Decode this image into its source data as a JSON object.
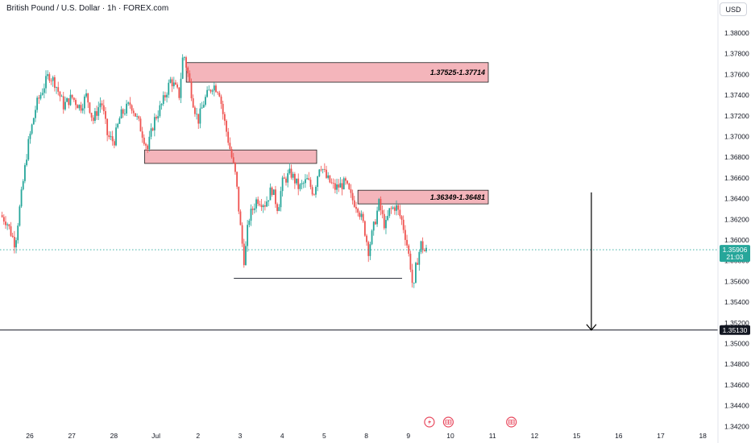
{
  "header": {
    "title": "British Pound / U.S. Dollar · 1h · FOREX.com",
    "currency_button": "USD"
  },
  "colors": {
    "up": "#26a69a",
    "down": "#ef5350",
    "zone_fill": "#f4b5bb",
    "zone_stroke": "#1e1e1e",
    "price_line": "#26a69a",
    "target_line": "#131722",
    "event_icon": "#e84a5f"
  },
  "chart_data": {
    "type": "candlestick",
    "symbol": "GBPUSD",
    "interval": "1h",
    "ylim": [
      1.341,
      1.3815
    ],
    "y_ticks": [
      "1.38000",
      "1.37800",
      "1.37600",
      "1.37400",
      "1.37200",
      "1.37000",
      "1.36800",
      "1.36600",
      "1.36400",
      "1.36200",
      "1.36000",
      "1.35800",
      "1.35600",
      "1.35400",
      "1.35200",
      "1.35000",
      "1.34800",
      "1.34600",
      "1.34400",
      "1.34200"
    ],
    "x_ticks": [
      "26",
      "27",
      "28",
      "Jul",
      "2",
      "3",
      "4",
      "5",
      "8",
      "9",
      "10",
      "11",
      "12",
      "15",
      "16",
      "17",
      "18"
    ],
    "x_tick_positions_days": [
      0,
      1,
      2,
      3,
      4,
      5,
      6,
      7,
      8,
      9,
      10,
      11,
      12,
      13,
      14,
      15,
      16
    ],
    "data_end_day": 9.45,
    "price_series": [
      [
        -0.7,
        1.3624
      ],
      [
        -0.55,
        1.3618
      ],
      [
        -0.35,
        1.3596
      ],
      [
        -0.25,
        1.3628
      ],
      [
        -0.05,
        1.369
      ],
      [
        0.15,
        1.373
      ],
      [
        0.25,
        1.374
      ],
      [
        0.45,
        1.376
      ],
      [
        0.6,
        1.3752
      ],
      [
        0.8,
        1.373
      ],
      [
        1.0,
        1.3738
      ],
      [
        1.2,
        1.3728
      ],
      [
        1.35,
        1.374
      ],
      [
        1.5,
        1.3715
      ],
      [
        1.7,
        1.3735
      ],
      [
        1.85,
        1.37
      ],
      [
        2.0,
        1.3695
      ],
      [
        2.15,
        1.372
      ],
      [
        2.4,
        1.3732
      ],
      [
        2.6,
        1.3712
      ],
      [
        2.8,
        1.3688
      ],
      [
        2.95,
        1.3715
      ],
      [
        3.15,
        1.3732
      ],
      [
        3.35,
        1.3755
      ],
      [
        3.55,
        1.374
      ],
      [
        3.65,
        1.3782
      ],
      [
        3.75,
        1.3762
      ],
      [
        3.9,
        1.373
      ],
      [
        4.0,
        1.3715
      ],
      [
        4.15,
        1.3735
      ],
      [
        4.35,
        1.375
      ],
      [
        4.5,
        1.3745
      ],
      [
        4.6,
        1.372
      ],
      [
        4.75,
        1.369
      ],
      [
        4.9,
        1.366
      ],
      [
        5.0,
        1.3615
      ],
      [
        5.1,
        1.3578
      ],
      [
        5.2,
        1.362
      ],
      [
        5.4,
        1.364
      ],
      [
        5.6,
        1.3635
      ],
      [
        5.75,
        1.365
      ],
      [
        5.9,
        1.363
      ],
      [
        6.0,
        1.3655
      ],
      [
        6.2,
        1.3665
      ],
      [
        6.4,
        1.365
      ],
      [
        6.6,
        1.3658
      ],
      [
        6.75,
        1.3645
      ],
      [
        6.9,
        1.3675
      ],
      [
        7.05,
        1.366
      ],
      [
        7.25,
        1.365
      ],
      [
        7.5,
        1.3655
      ],
      [
        7.65,
        1.364
      ],
      [
        7.8,
        1.3632
      ],
      [
        7.95,
        1.3612
      ],
      [
        8.05,
        1.359
      ],
      [
        8.15,
        1.3608
      ],
      [
        8.3,
        1.3635
      ],
      [
        8.45,
        1.3612
      ],
      [
        8.55,
        1.3628
      ],
      [
        8.7,
        1.3633
      ],
      [
        8.85,
        1.3618
      ],
      [
        8.95,
        1.36
      ],
      [
        9.05,
        1.3575
      ],
      [
        9.12,
        1.3548
      ],
      [
        9.18,
        1.3575
      ],
      [
        9.3,
        1.3596
      ],
      [
        9.4,
        1.3588
      ],
      [
        9.45,
        1.3591
      ]
    ],
    "zones": [
      {
        "label": "1.37525-1.37714",
        "low": 1.37525,
        "high": 1.37714,
        "from_day": 3.72,
        "to_day": 10.9
      },
      {
        "label": "",
        "low": 1.3674,
        "high": 1.3687,
        "from_day": 2.73,
        "to_day": 6.82
      },
      {
        "label": "1.36349-1.36481",
        "low": 1.36349,
        "high": 1.36481,
        "from_day": 7.8,
        "to_day": 10.9
      }
    ],
    "support_line": {
      "price": 1.3563,
      "from_day": 4.85,
      "to_day": 8.85
    },
    "current_price": "1.35906",
    "countdown": "21:03",
    "target_price": "1.35130",
    "target_arrow": {
      "day": 13.35,
      "from_price": 1.3646,
      "to_price": 1.3513
    },
    "event_icons": [
      "lightning-flag-icon",
      "gbp-flag-icon",
      "gbp-flag-icon"
    ],
    "event_icon_days": [
      9.5,
      9.95,
      11.45
    ],
    "grid": false,
    "legend": "none"
  }
}
